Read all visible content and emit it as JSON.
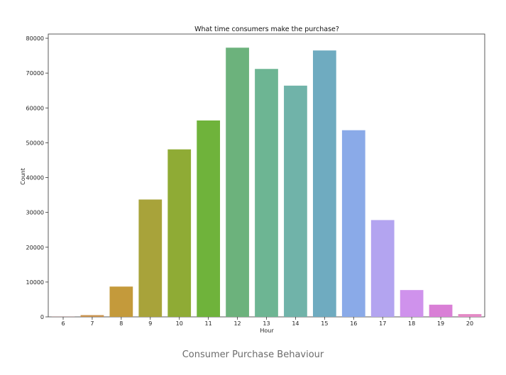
{
  "caption": "Consumer Purchase Behaviour",
  "chart_data": {
    "type": "bar",
    "title": "What time consumers make the purchase?",
    "xlabel": "Hour",
    "ylabel": "Count",
    "categories": [
      "6",
      "7",
      "8",
      "9",
      "10",
      "11",
      "12",
      "13",
      "14",
      "15",
      "16",
      "17",
      "18",
      "19",
      "20"
    ],
    "values": [
      40,
      500,
      8700,
      33700,
      48100,
      56400,
      77300,
      71200,
      66400,
      76500,
      53600,
      27800,
      7700,
      3500,
      800
    ],
    "ylim": [
      0,
      80000
    ],
    "yticks": [
      0,
      10000,
      20000,
      30000,
      40000,
      50000,
      60000,
      70000,
      80000
    ],
    "grid": false,
    "colors": [
      "#e48a8a",
      "#c9934f",
      "#c49a3b",
      "#a8a33a",
      "#8fab35",
      "#6fb33b",
      "#6cb27c",
      "#6db593",
      "#70b3a9",
      "#6fabc0",
      "#8aaae8",
      "#b3a4f0",
      "#cf92ec",
      "#d97fd6",
      "#e48ac6"
    ]
  }
}
